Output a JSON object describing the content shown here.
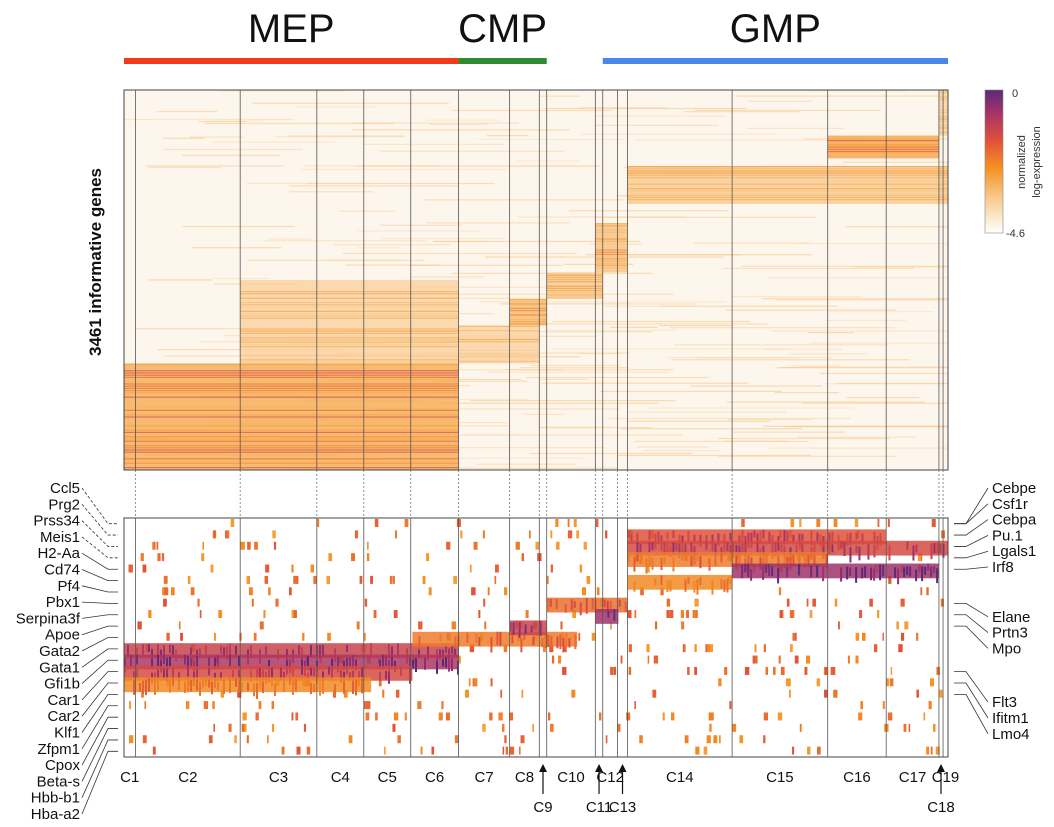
{
  "chart_data": {
    "type": "heatmap",
    "lineages": [
      {
        "name": "MEP",
        "color": "#f43a18",
        "cluster_span": [
          1,
          6
        ]
      },
      {
        "name": "CMP",
        "color": "#2e8b2e",
        "cluster_span": [
          7,
          9
        ]
      },
      {
        "name": "GMP",
        "color": "#4a86e8",
        "cluster_span": [
          12,
          19
        ]
      }
    ],
    "ylabel": "3461 informative genes",
    "colorbar": {
      "max_label": "0",
      "min_label": "-4.6",
      "title_line1": "normalized",
      "title_line2": "log-expression",
      "colors": [
        "#ffffff",
        "#f8c98c",
        "#f59322",
        "#e0503a",
        "#a3326a",
        "#5a2a7a"
      ]
    },
    "clusters": [
      {
        "label": "C1",
        "boundary": 0.014
      },
      {
        "label": "C2",
        "boundary": 0.141
      },
      {
        "label": "C3",
        "boundary": 0.234
      },
      {
        "label": "C4",
        "boundary": 0.291
      },
      {
        "label": "C5",
        "boundary": 0.348
      },
      {
        "label": "C6",
        "boundary": 0.406
      },
      {
        "label": "C7",
        "boundary": 0.468
      },
      {
        "label": "C8",
        "boundary": 0.504
      },
      {
        "label": "C9",
        "boundary": 0.513
      },
      {
        "label": "C10",
        "boundary": 0.572
      },
      {
        "label": "C11",
        "boundary": 0.581
      },
      {
        "label": "C12",
        "boundary": 0.599
      },
      {
        "label": "C13",
        "boundary": 0.611
      },
      {
        "label": "C14",
        "boundary": 0.738
      },
      {
        "label": "C15",
        "boundary": 0.854
      },
      {
        "label": "C16",
        "boundary": 0.925
      },
      {
        "label": "C17",
        "boundary": 0.989
      },
      {
        "label": "C18",
        "boundary": 0.994
      },
      {
        "label": "C19",
        "boundary": 1.0
      }
    ],
    "genes_left": [
      "Ccl5",
      "Prg2",
      "Prss34",
      "Meis1",
      "H2-Aa",
      "Cd74",
      "Pf4",
      "Pbx1",
      "Serpina3f",
      "Apoe",
      "Gata2",
      "Gata1",
      "Gfi1b",
      "Car1",
      "Car2",
      "Klf1",
      "Zfpm1",
      "Cpox",
      "Beta-s",
      "Hbb-b1",
      "Hba-a2"
    ],
    "genes_right": [
      "Cebpe",
      "Csf1r",
      "Cebpa",
      "Pu.1",
      "Lgals1",
      "Irf8",
      "Elane",
      "Prtn3",
      "Mpo",
      "Flt3",
      "Ifitm1",
      "Lmo4"
    ],
    "top_heatmap_blocks": [
      {
        "from": 0,
        "to": 0.406,
        "rows": [
          0.72,
          1.0
        ],
        "level": 0.55
      },
      {
        "from": 0.141,
        "to": 0.406,
        "rows": [
          0.5,
          0.72
        ],
        "level": 0.3
      },
      {
        "from": 0.406,
        "to": 0.504,
        "rows": [
          0.62,
          0.72
        ],
        "level": 0.3
      },
      {
        "from": 0.468,
        "to": 0.513,
        "rows": [
          0.55,
          0.62
        ],
        "level": 0.45
      },
      {
        "from": 0.513,
        "to": 0.581,
        "rows": [
          0.48,
          0.55
        ],
        "level": 0.35
      },
      {
        "from": 0.572,
        "to": 0.611,
        "rows": [
          0.35,
          0.48
        ],
        "level": 0.4
      },
      {
        "from": 0.611,
        "to": 1.0,
        "rows": [
          0.2,
          0.3
        ],
        "level": 0.35
      },
      {
        "from": 0.854,
        "to": 0.989,
        "rows": [
          0.12,
          0.18
        ],
        "level": 0.6
      },
      {
        "from": 0.989,
        "to": 1.0,
        "rows": [
          0.0,
          0.12
        ],
        "level": 0.3
      }
    ],
    "marker_blocks": [
      {
        "gene_row": 11,
        "from": 0,
        "to": 0.406,
        "level": 0.8
      },
      {
        "gene_row": 12,
        "from": 0,
        "to": 0.406,
        "level": 0.9
      },
      {
        "gene_row": 13,
        "from": 0,
        "to": 0.35,
        "level": 0.75
      },
      {
        "gene_row": 14,
        "from": 0,
        "to": 0.3,
        "level": 0.5
      },
      {
        "gene_row": 10,
        "from": 0.35,
        "to": 0.55,
        "level": 0.55
      },
      {
        "gene_row": 9,
        "from": 0.468,
        "to": 0.513,
        "level": 0.8
      },
      {
        "gene_row": 7,
        "from": 0.513,
        "to": 0.611,
        "level": 0.6
      },
      {
        "gene_row": 8,
        "from": 0.572,
        "to": 0.6,
        "level": 0.95
      },
      {
        "gene_row": 1,
        "from": 0.611,
        "to": 0.925,
        "level": 0.7
      },
      {
        "gene_row": 2,
        "from": 0.611,
        "to": 1.0,
        "level": 0.75
      },
      {
        "gene_row": 3,
        "from": 0.611,
        "to": 0.854,
        "level": 0.55
      },
      {
        "gene_row": 4,
        "from": 0.738,
        "to": 0.989,
        "level": 0.95
      },
      {
        "gene_row": 5,
        "from": 0.611,
        "to": 0.738,
        "level": 0.5
      }
    ]
  }
}
